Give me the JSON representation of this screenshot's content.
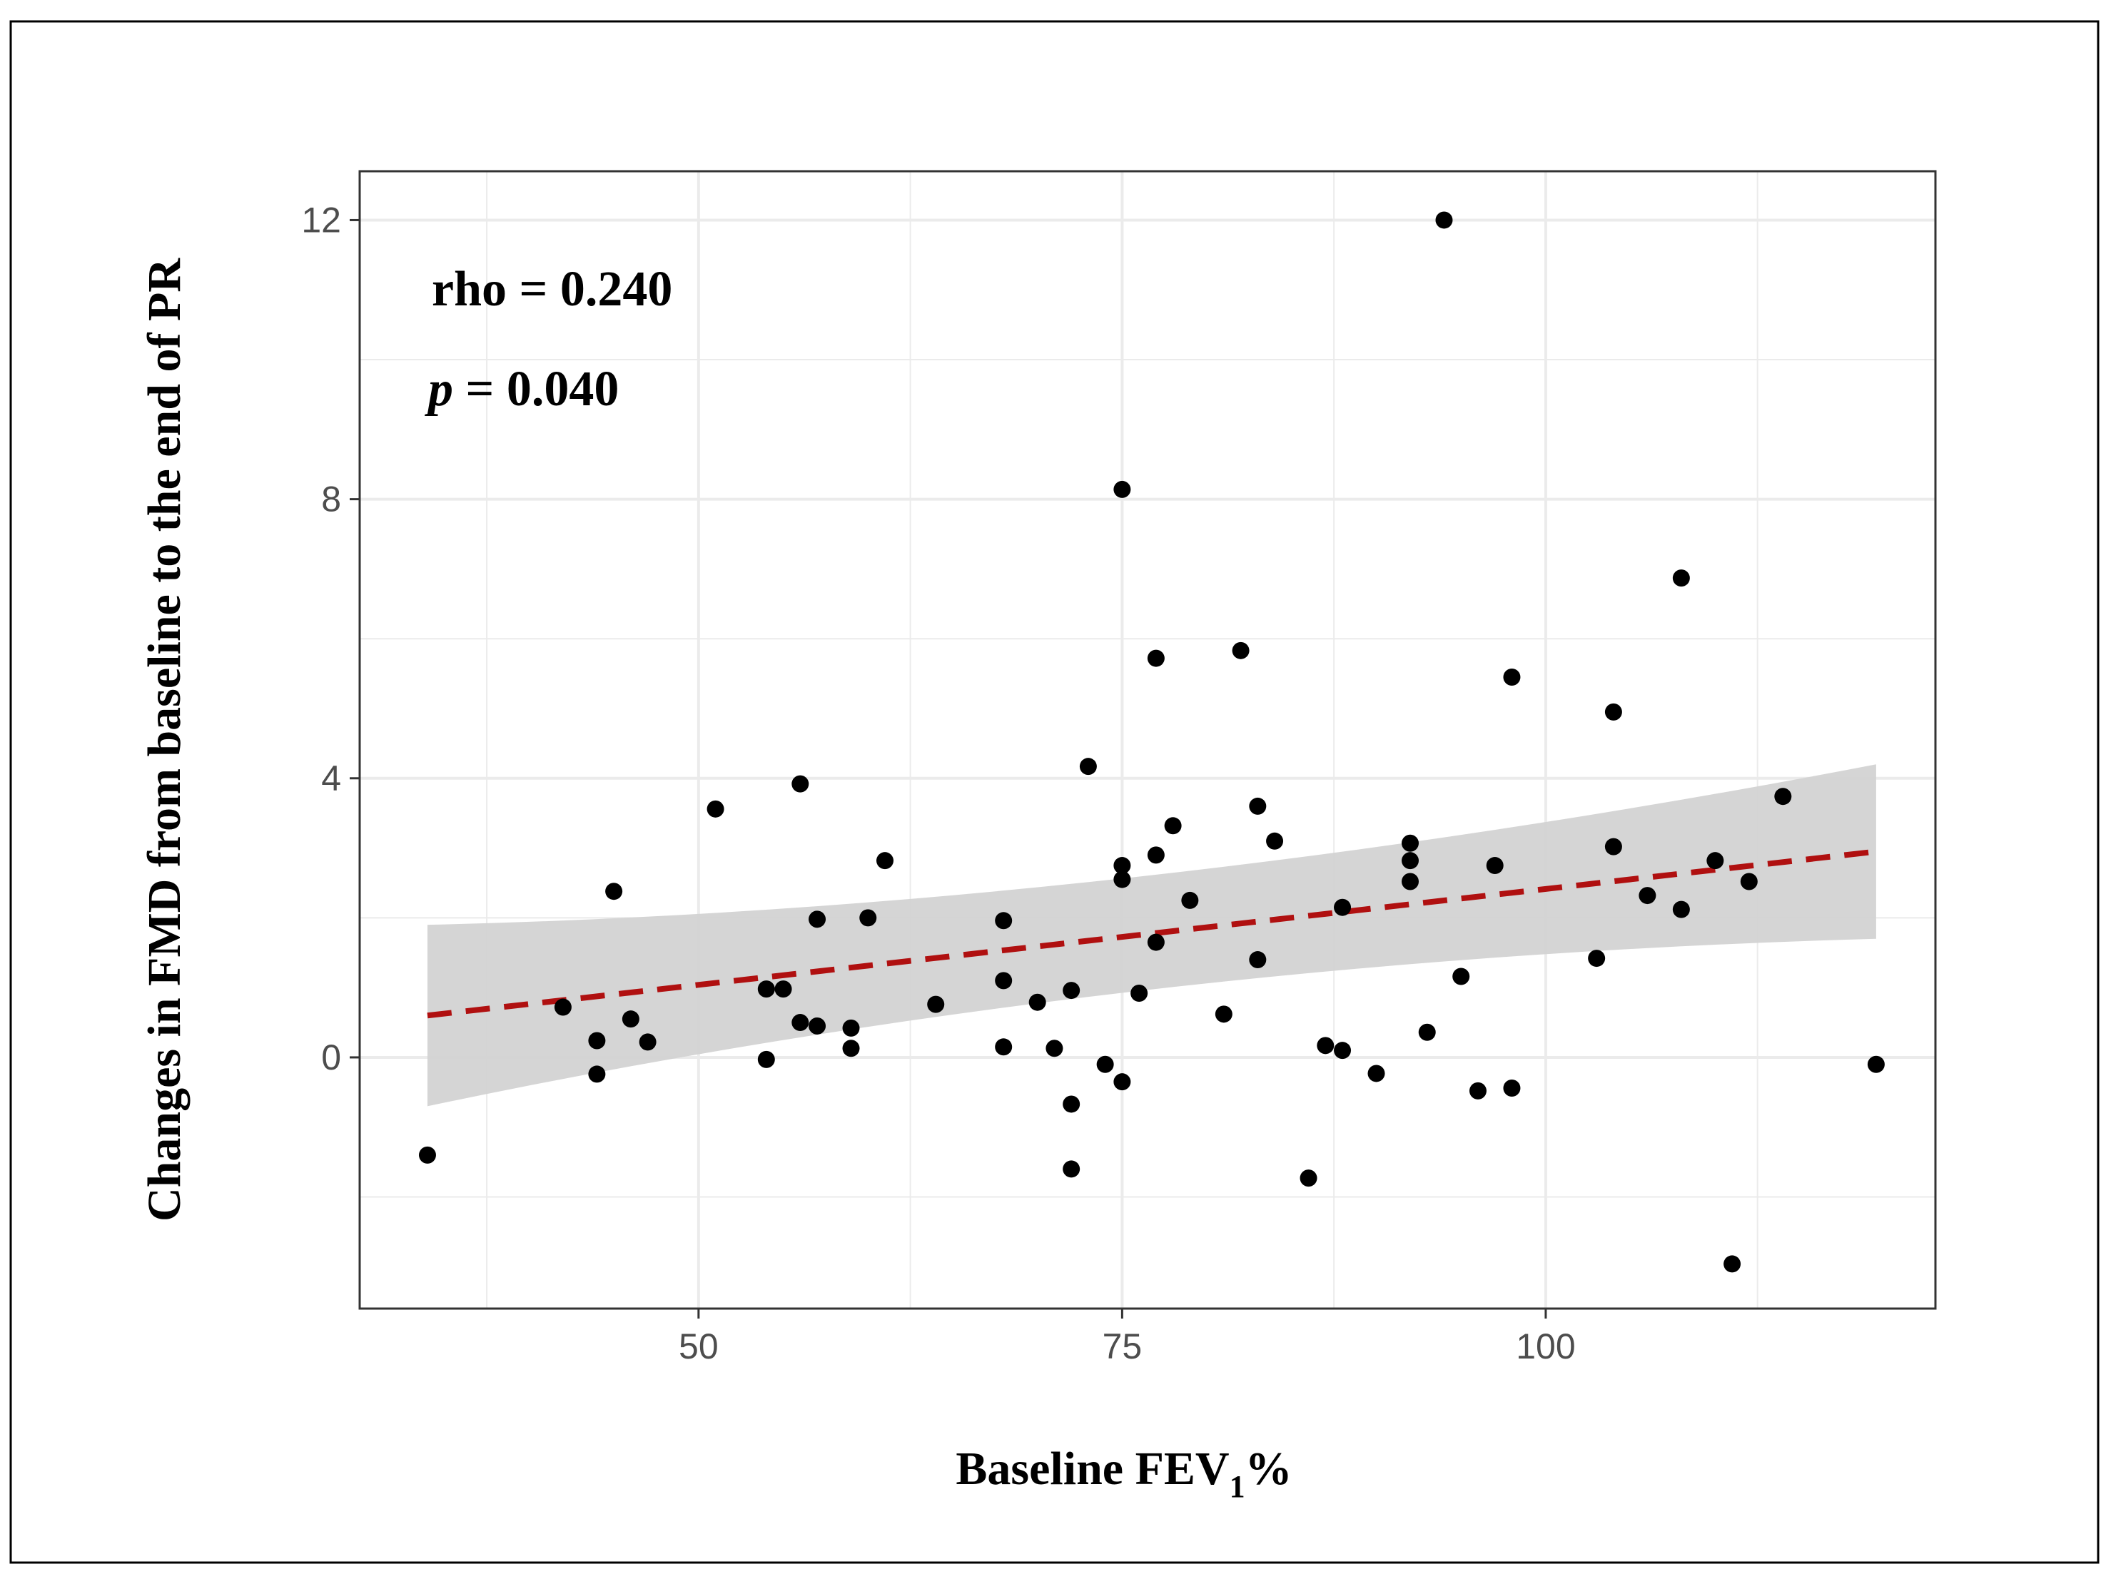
{
  "chart_data": {
    "type": "scatter",
    "title": "",
    "xlabel_main": "Baseline FEV",
    "xlabel_sub": "1",
    "xlabel_suffix": "%",
    "ylabel": "Changes in FMD from baseline to the end of PR",
    "xlim": [
      30,
      123
    ],
    "ylim": [
      -3.6,
      12.7
    ],
    "x_ticks": [
      50,
      75,
      100
    ],
    "x_tick_labels": [
      "50",
      "75",
      "100"
    ],
    "x_minor_gridlines": [
      37.5,
      62.5,
      87.5,
      112.5
    ],
    "y_ticks": [
      0,
      4,
      8,
      12
    ],
    "y_tick_labels": [
      "0",
      "4",
      "8",
      "12"
    ],
    "y_minor_gridlines": [
      -2,
      2,
      6,
      10
    ],
    "grid": true,
    "annotations": {
      "rho_text": "rho = 0.240",
      "p_symbol": "p",
      "p_text": " = 0.040"
    },
    "fit_line": {
      "style": "dashed",
      "x": [
        34,
        119.5
      ],
      "y": [
        0.6,
        2.95
      ]
    },
    "confidence_band": {
      "x": [
        34,
        75,
        119.5
      ],
      "upper": [
        1.9,
        2.2,
        4.2
      ],
      "lower": [
        -0.7,
        1.3,
        1.7
      ]
    },
    "points": [
      {
        "x": 34,
        "y": -1.4
      },
      {
        "x": 42,
        "y": 0.72
      },
      {
        "x": 44,
        "y": 0.24
      },
      {
        "x": 44,
        "y": -0.24
      },
      {
        "x": 45,
        "y": 2.38
      },
      {
        "x": 46,
        "y": 0.55
      },
      {
        "x": 47,
        "y": 0.22
      },
      {
        "x": 51,
        "y": 3.56
      },
      {
        "x": 54,
        "y": 0.98
      },
      {
        "x": 54,
        "y": -0.03
      },
      {
        "x": 55,
        "y": 0.98
      },
      {
        "x": 56,
        "y": 3.92
      },
      {
        "x": 56,
        "y": 0.5
      },
      {
        "x": 57,
        "y": 1.98
      },
      {
        "x": 57,
        "y": 0.45
      },
      {
        "x": 59,
        "y": 0.42
      },
      {
        "x": 59,
        "y": 0.13
      },
      {
        "x": 60,
        "y": 2.0
      },
      {
        "x": 61,
        "y": 2.82
      },
      {
        "x": 64,
        "y": 0.76
      },
      {
        "x": 68,
        "y": 1.96
      },
      {
        "x": 68,
        "y": 1.1
      },
      {
        "x": 68,
        "y": 0.15
      },
      {
        "x": 70,
        "y": 0.79
      },
      {
        "x": 71,
        "y": 0.13
      },
      {
        "x": 72,
        "y": 0.96
      },
      {
        "x": 72,
        "y": -0.67
      },
      {
        "x": 72,
        "y": -1.6
      },
      {
        "x": 73,
        "y": 4.17
      },
      {
        "x": 74,
        "y": -0.1
      },
      {
        "x": 75,
        "y": 8.14
      },
      {
        "x": 75,
        "y": 2.75
      },
      {
        "x": 75,
        "y": 2.55
      },
      {
        "x": 75,
        "y": -0.35
      },
      {
        "x": 76,
        "y": 0.92
      },
      {
        "x": 77,
        "y": 5.72
      },
      {
        "x": 77,
        "y": 2.9
      },
      {
        "x": 77,
        "y": 1.65
      },
      {
        "x": 78,
        "y": 3.32
      },
      {
        "x": 79,
        "y": 2.25
      },
      {
        "x": 81,
        "y": 0.62
      },
      {
        "x": 82,
        "y": 5.83
      },
      {
        "x": 83,
        "y": 3.6
      },
      {
        "x": 83,
        "y": 1.4
      },
      {
        "x": 84,
        "y": 3.1
      },
      {
        "x": 86,
        "y": -1.73
      },
      {
        "x": 87,
        "y": 0.17
      },
      {
        "x": 88,
        "y": 2.15
      },
      {
        "x": 88,
        "y": 0.1
      },
      {
        "x": 90,
        "y": -0.23
      },
      {
        "x": 92,
        "y": 3.07
      },
      {
        "x": 92,
        "y": 2.82
      },
      {
        "x": 92,
        "y": 2.52
      },
      {
        "x": 93,
        "y": 0.36
      },
      {
        "x": 94,
        "y": 12.0
      },
      {
        "x": 95,
        "y": 1.16
      },
      {
        "x": 96,
        "y": -0.48
      },
      {
        "x": 97,
        "y": 2.75
      },
      {
        "x": 98,
        "y": 5.45
      },
      {
        "x": 98,
        "y": -0.44
      },
      {
        "x": 103,
        "y": 1.42
      },
      {
        "x": 104,
        "y": 4.95
      },
      {
        "x": 104,
        "y": 3.02
      },
      {
        "x": 106,
        "y": 2.32
      },
      {
        "x": 108,
        "y": 6.87
      },
      {
        "x": 108,
        "y": 2.12
      },
      {
        "x": 110,
        "y": 2.82
      },
      {
        "x": 111,
        "y": -2.96
      },
      {
        "x": 112,
        "y": 2.52
      },
      {
        "x": 114,
        "y": 3.74
      },
      {
        "x": 119.5,
        "y": -0.1
      }
    ]
  },
  "colors": {
    "points": "#000000",
    "fit_line": "#b01010",
    "band": "#d3d3d3",
    "grid": "#ebebeb",
    "panel_border": "#333333",
    "frame": "#000000"
  }
}
